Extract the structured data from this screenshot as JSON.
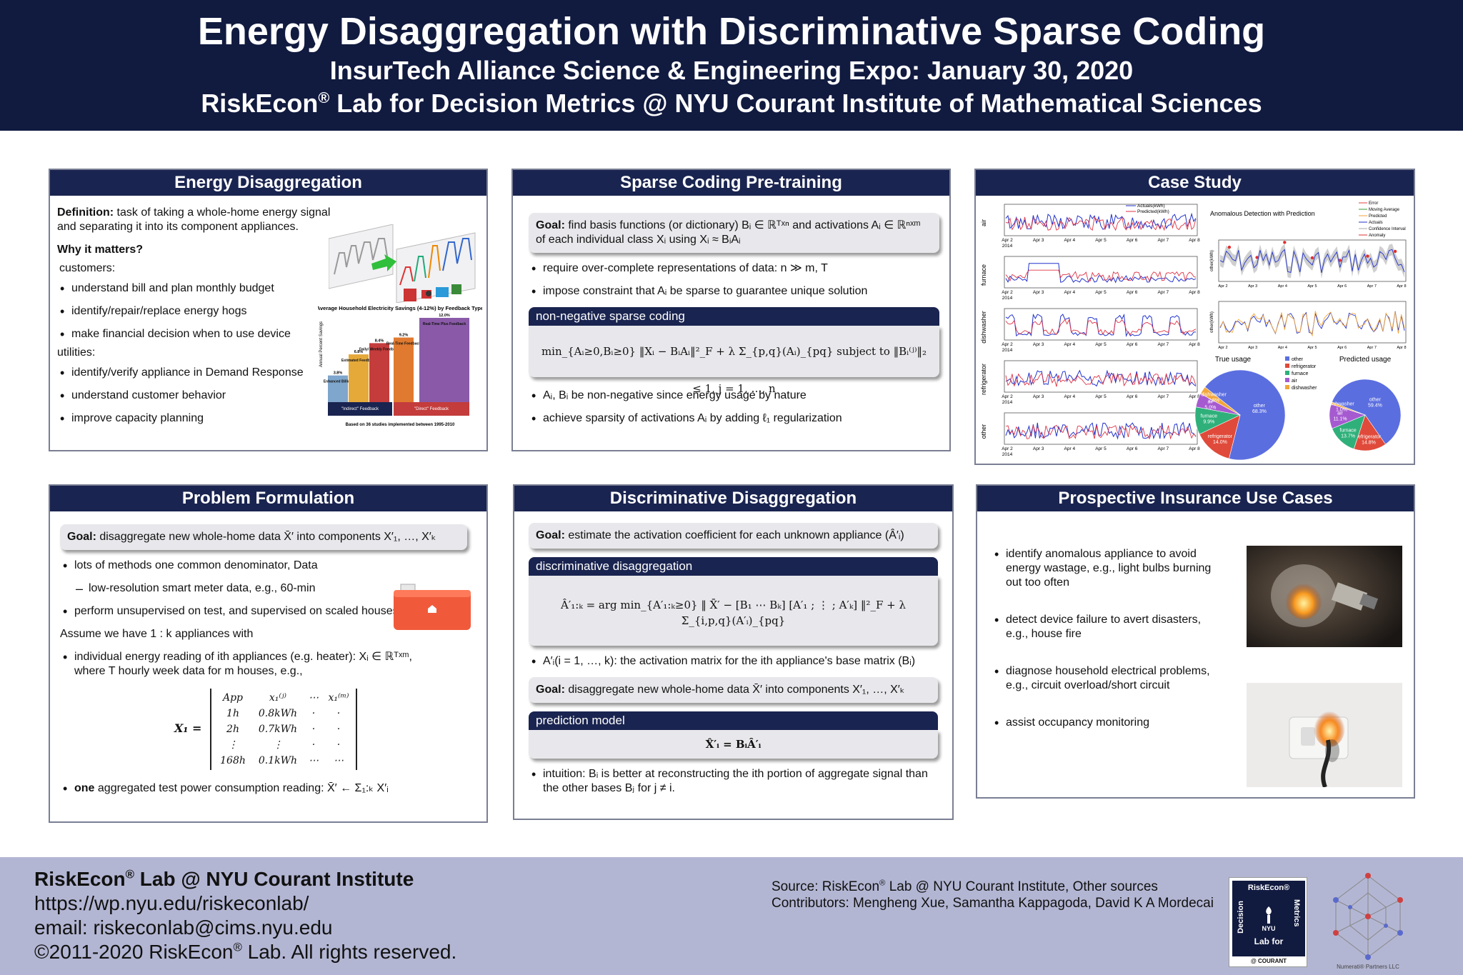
{
  "header": {
    "title": "Energy Disaggregation with Discriminative Sparse Coding",
    "subtitle": "InsurTech Alliance Science & Engineering Expo: January 30, 2020",
    "lab_line_pre": "RiskEcon",
    "lab_line_post": " Lab for Decision Metrics @ NYU Courant Institute of Mathematical Sciences"
  },
  "energy_disaggregation": {
    "title": "Energy Disaggregation",
    "definition_label": "Definition:",
    "definition_text": " task of taking a whole-home energy signal and separating it into its component appliances.",
    "why_label": "Why it matters?",
    "customers_label": "customers:",
    "customers": [
      "understand bill and plan monthly budget",
      "identify/repair/replace energy hogs",
      "make financial decision when to use device"
    ],
    "utilities_label": "utilities:",
    "utilities": [
      "identify/verify appliance in Demand Response",
      "understand customer behavior",
      "improve capacity planning"
    ],
    "savings_chart": {
      "title": "Average Household Electricity Savings (4-12%) by Feedback Type",
      "bars": [
        {
          "value": "3.8%",
          "label": "Enhanced Billing",
          "color": "#7fa6cc"
        },
        {
          "value": "6.8%",
          "label": "Estimated Feedback",
          "color": "#e5a93a"
        },
        {
          "value": "8.4%",
          "label": "Daily/ Weekly Feedback",
          "color": "#c43c3c"
        },
        {
          "value": "9.2%",
          "label": "Real-Time Feedback",
          "color": "#e07a30"
        },
        {
          "value": "12.0%",
          "label": "Real-Time Plus Feedback",
          "color": "#8a5aa8"
        }
      ],
      "indirect": "\"Indirect\" Feedback",
      "direct": "\"Direct\" Feedback",
      "footnote": "Based on 36 studies implemented between 1995-2010"
    }
  },
  "sparse_coding": {
    "title": "Sparse Coding Pre-training",
    "goal_label": "Goal:",
    "goal_text": "find basis functions (or dictionary) Bᵢ ∈ ℝᵀˣⁿ and activations Aᵢ ∈ ℝⁿˣᵐ of each individual class Xᵢ using Xᵢ ≈ BᵢAᵢ",
    "bullets": [
      "require over-complete representations of data: n ≫ m, T",
      "impose constraint that Aᵢ be sparse to guarantee unique solution"
    ],
    "box_title": "non-negative sparse coding",
    "formula": "min_{Aᵢ≥0,Bᵢ≥0} ‖Xᵢ − BᵢAᵢ‖²_F + λ Σ_{p,q}(Aᵢ)_{pq}   subject to   ‖Bᵢ⁽ʲ⁾‖₂ ≤ 1, j = 1, …, n",
    "bullets2": [
      "Aᵢ, Bᵢ be non-negative since energy usage by nature",
      "achieve sparsity of activations Aᵢ by adding ℓ₁ regularization"
    ]
  },
  "case_study": {
    "title": "Case Study",
    "row_labels": [
      "air",
      "furnace",
      "dishwasher",
      "refrigerator",
      "other"
    ],
    "legend_actual": "Actuals(kWh)",
    "legend_predicted": "Predicted(kWh)",
    "x_ticks": [
      "Apr 2\n2014",
      "Apr 3",
      "Apr 4",
      "Apr 5",
      "Apr 6",
      "Apr 7",
      "Apr 8"
    ],
    "anomaly_title": "Anomalous Detection with Prediction",
    "anomaly_legend": [
      "Error",
      "Moving Average",
      "Predicted",
      "Actuals",
      "Confidence Interval",
      "Anomaly"
    ],
    "pie_true_title": "True usage",
    "pie_pred_title": "Predicted usage",
    "pie_legend": [
      "other",
      "refrigerator",
      "furnace",
      "air",
      "dishwasher"
    ]
  },
  "chart_data": [
    {
      "type": "pie",
      "title": "True usage",
      "categories": [
        "other",
        "refrigerator",
        "furnace",
        "air",
        "dishwasher"
      ],
      "values": [
        68.3,
        14.0,
        9.9,
        5.0,
        2.8
      ],
      "colors": [
        "#5b6ee0",
        "#e04a3a",
        "#2fb07a",
        "#a65ad0",
        "#f2a63a"
      ]
    },
    {
      "type": "pie",
      "title": "Predicted usage",
      "categories": [
        "other",
        "refrigerator",
        "furnace",
        "air",
        "dishwasher"
      ],
      "values": [
        59.4,
        14.8,
        13.7,
        11.1,
        1.0
      ],
      "colors": [
        "#5b6ee0",
        "#e04a3a",
        "#2fb07a",
        "#a65ad0",
        "#f2a63a"
      ]
    }
  ],
  "problem": {
    "title": "Problem Formulation",
    "goal_label": "Goal:",
    "goal_text": "disaggregate new whole-home data X̄′ into components X′₁, …, X′ₖ",
    "b1": "lots of methods one common denominator, Data",
    "b1_sub": "low-resolution smart meter data, e.g., 60-min",
    "b2": "perform unsupervised on test, and supervised on scaled houses",
    "assume": "Assume we have 1 : k appliances with",
    "b3": "individual energy reading of ith appliances (e.g. heater): Xᵢ ∈ ℝᵀˣᵐ, where T hourly week data for m houses, e.g.,",
    "matrix_label": "X₁ =",
    "matrix": [
      [
        "App",
        "x₁⁽ʲ⁾",
        "⋯",
        "x₁⁽ᵐ⁾"
      ],
      [
        "1h",
        "0.8kWh",
        "·",
        "·"
      ],
      [
        "2h",
        "0.7kWh",
        "·",
        "·"
      ],
      [
        "⋮",
        "⋮",
        "·",
        "·"
      ],
      [
        "168h",
        "0.1kWh",
        "⋯",
        "⋯"
      ]
    ],
    "b4_bold": "one",
    "b4": " aggregated test power consumption reading: X̄′ ← Σ₁:ₖ X′ᵢ"
  },
  "discriminative": {
    "title": "Discriminative Disaggregation",
    "goal_label": "Goal:",
    "goal_text": "estimate the activation coefficient for each unknown appliance (Â′ᵢ)",
    "box_title": "discriminative disaggregation",
    "formula": "Â′₁:ₖ = arg min_{A′₁:ₖ≥0} ‖ X̄′ − [B₁ ⋯ Bₖ] [A′₁ ; ⋮ ; A′ₖ] ‖²_F + λ Σ_{i,p,q}(A′ᵢ)_{pq}",
    "b1": "A′ᵢ(i = 1, …, k): the activation matrix for the ith appliance's base matrix (Bᵢ)",
    "goal2_label": "Goal:",
    "goal2_text": "disaggregate new whole-home data X̄′ into components X′₁, …, X′ₖ",
    "box2_title": "prediction model",
    "formula2": "X̂′ᵢ = BᵢÂ′ᵢ",
    "b2": "intuition: Bᵢ is better at reconstructing the ith portion of aggregate signal than the other bases Bⱼ for j ≠ i."
  },
  "insurance": {
    "title": "Prospective Insurance Use Cases",
    "bullets": [
      "identify anomalous appliance to avoid energy wastage, e.g., light bulbs burning out too often",
      "detect device failure to avert disasters, e.g., house fire",
      "diagnose household electrical problems, e.g., circuit overload/short circuit",
      "assist occupancy monitoring"
    ]
  },
  "footer": {
    "lab": "RiskEcon",
    "lab_post": " Lab @ NYU Courant Institute",
    "url": "https://wp.nyu.edu/riskeconlab/",
    "email": "email: riskeconlab@cims.nyu.edu",
    "copyright_pre": "©2011-2020 RiskEcon",
    "copyright_post": " Lab. All rights reserved.",
    "source_pre": "Source: RiskEcon",
    "source_post": " Lab @ NYU Courant Institute, Other sources",
    "contributors": "Contributors: Mengheng Xue, Samantha Kappagoda, David K A Mordecai",
    "logo_top": "RiskEcon®",
    "logo_left": "Decision",
    "logo_right": "Metrics",
    "logo_nyu": "NYU",
    "logo_labfor": "Lab for",
    "logo_courant": "@ COURANT",
    "numerati": "Numerati® Partners LLC"
  }
}
